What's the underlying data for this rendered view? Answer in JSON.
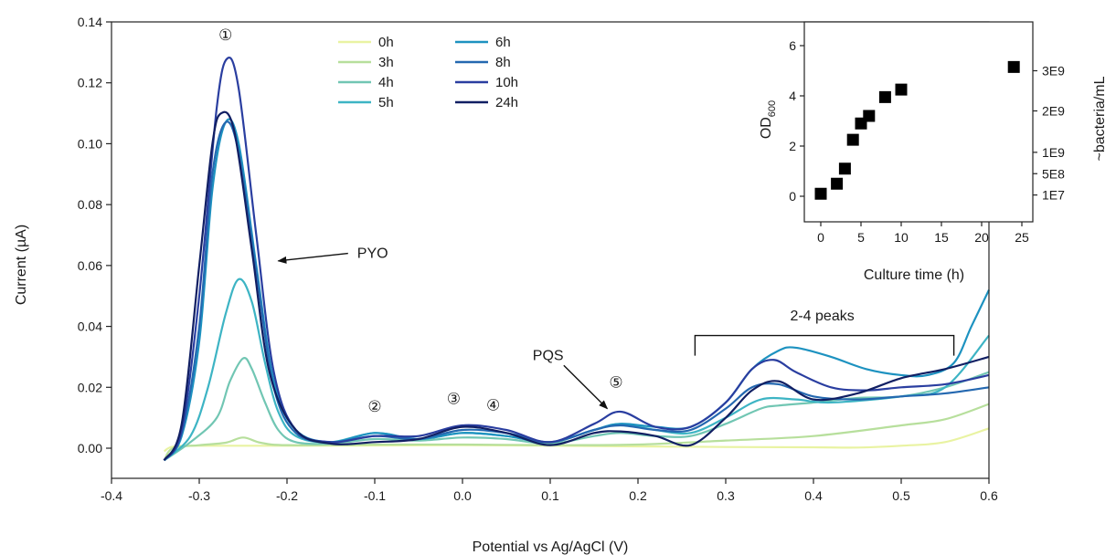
{
  "chart_data": [
    {
      "type": "line",
      "title": "",
      "xlabel": "Potential vs Ag/AgCl (V)",
      "ylabel": "Current (µA)",
      "xlim": [
        -0.4,
        0.6
      ],
      "ylim": [
        0,
        0.14
      ],
      "xticks": [
        "-0.4",
        "-0.3",
        "-0.2",
        "-0.1",
        "0.0",
        "0.1",
        "0.2",
        "0.3",
        "0.4",
        "0.5",
        "0.6"
      ],
      "yticks": [
        "0.00",
        "0.02",
        "0.04",
        "0.06",
        "0.08",
        "0.10",
        "0.12",
        "0.14"
      ],
      "legend_position": "top-center",
      "colors": {
        "0h": "#e9f3a2",
        "3h": "#b7df9c",
        "4h": "#71c6b3",
        "5h": "#3db4c4",
        "6h": "#1d92c0",
        "8h": "#2468b0",
        "10h": "#2a3ea0",
        "24h": "#111f63"
      },
      "series": [
        {
          "name": "0h",
          "points": [
            [
              -0.34,
              -0.001
            ],
            [
              -0.33,
              0.0005
            ],
            [
              -0.3,
              0.0008
            ],
            [
              -0.2,
              0.0008
            ],
            [
              -0.1,
              0.0009
            ],
            [
              0.0,
              0.001
            ],
            [
              0.1,
              0.0008
            ],
            [
              0.2,
              0.0006
            ],
            [
              0.3,
              0.0004
            ],
            [
              0.4,
              0.0003
            ],
            [
              0.45,
              0.0002
            ],
            [
              0.5,
              0.0008
            ],
            [
              0.55,
              0.002
            ],
            [
              0.6,
              0.0065
            ]
          ]
        },
        {
          "name": "3h",
          "points": [
            [
              -0.34,
              -0.004
            ],
            [
              -0.33,
              0.0
            ],
            [
              -0.3,
              0.001
            ],
            [
              -0.27,
              0.0018
            ],
            [
              -0.25,
              0.0035
            ],
            [
              -0.23,
              0.0018
            ],
            [
              -0.2,
              0.001
            ],
            [
              -0.1,
              0.0012
            ],
            [
              0.0,
              0.0012
            ],
            [
              0.1,
              0.001
            ],
            [
              0.2,
              0.0012
            ],
            [
              0.3,
              0.0025
            ],
            [
              0.4,
              0.004
            ],
            [
              0.5,
              0.0075
            ],
            [
              0.55,
              0.0095
            ],
            [
              0.6,
              0.0145
            ]
          ]
        },
        {
          "name": "4h",
          "points": [
            [
              -0.34,
              -0.004
            ],
            [
              -0.31,
              0.002
            ],
            [
              -0.28,
              0.01
            ],
            [
              -0.265,
              0.022
            ],
            [
              -0.25,
              0.0295
            ],
            [
              -0.24,
              0.026
            ],
            [
              -0.225,
              0.015
            ],
            [
              -0.21,
              0.006
            ],
            [
              -0.19,
              0.002
            ],
            [
              -0.15,
              0.0015
            ],
            [
              -0.1,
              0.003
            ],
            [
              -0.05,
              0.0025
            ],
            [
              0.0,
              0.0035
            ],
            [
              0.05,
              0.003
            ],
            [
              0.1,
              0.0015
            ],
            [
              0.15,
              0.004
            ],
            [
              0.18,
              0.005
            ],
            [
              0.22,
              0.004
            ],
            [
              0.26,
              0.004
            ],
            [
              0.3,
              0.008
            ],
            [
              0.34,
              0.013
            ],
            [
              0.36,
              0.014
            ],
            [
              0.4,
              0.015
            ],
            [
              0.45,
              0.0165
            ],
            [
              0.5,
              0.017
            ],
            [
              0.55,
              0.02
            ],
            [
              0.6,
              0.025
            ]
          ]
        },
        {
          "name": "5h",
          "points": [
            [
              -0.34,
              -0.004
            ],
            [
              -0.31,
              0.004
            ],
            [
              -0.29,
              0.02
            ],
            [
              -0.27,
              0.044
            ],
            [
              -0.255,
              0.0555
            ],
            [
              -0.24,
              0.048
            ],
            [
              -0.225,
              0.028
            ],
            [
              -0.21,
              0.012
            ],
            [
              -0.19,
              0.004
            ],
            [
              -0.15,
              0.002
            ],
            [
              -0.1,
              0.005
            ],
            [
              -0.05,
              0.003
            ],
            [
              0.0,
              0.005
            ],
            [
              0.05,
              0.004
            ],
            [
              0.1,
              0.002
            ],
            [
              0.15,
              0.006
            ],
            [
              0.18,
              0.008
            ],
            [
              0.22,
              0.006
            ],
            [
              0.26,
              0.005
            ],
            [
              0.3,
              0.01
            ],
            [
              0.34,
              0.016
            ],
            [
              0.38,
              0.016
            ],
            [
              0.42,
              0.015
            ],
            [
              0.5,
              0.017
            ],
            [
              0.55,
              0.02
            ],
            [
              0.6,
              0.037
            ]
          ]
        },
        {
          "name": "6h",
          "points": [
            [
              -0.34,
              -0.004
            ],
            [
              -0.32,
              0.004
            ],
            [
              -0.3,
              0.035
            ],
            [
              -0.285,
              0.085
            ],
            [
              -0.27,
              0.107
            ],
            [
              -0.255,
              0.1
            ],
            [
              -0.235,
              0.06
            ],
            [
              -0.215,
              0.022
            ],
            [
              -0.19,
              0.006
            ],
            [
              -0.15,
              0.002
            ],
            [
              -0.1,
              0.005
            ],
            [
              -0.05,
              0.003
            ],
            [
              0.0,
              0.005
            ],
            [
              0.05,
              0.004
            ],
            [
              0.1,
              0.002
            ],
            [
              0.15,
              0.006
            ],
            [
              0.18,
              0.008
            ],
            [
              0.22,
              0.007
            ],
            [
              0.26,
              0.007
            ],
            [
              0.3,
              0.015
            ],
            [
              0.33,
              0.026
            ],
            [
              0.36,
              0.032
            ],
            [
              0.38,
              0.033
            ],
            [
              0.42,
              0.03
            ],
            [
              0.46,
              0.026
            ],
            [
              0.5,
              0.024
            ],
            [
              0.53,
              0.024
            ],
            [
              0.56,
              0.028
            ],
            [
              0.58,
              0.04
            ],
            [
              0.6,
              0.052
            ]
          ]
        },
        {
          "name": "8h",
          "points": [
            [
              -0.34,
              -0.004
            ],
            [
              -0.32,
              0.005
            ],
            [
              -0.3,
              0.04
            ],
            [
              -0.285,
              0.09
            ],
            [
              -0.27,
              0.107
            ],
            [
              -0.255,
              0.097
            ],
            [
              -0.235,
              0.058
            ],
            [
              -0.215,
              0.02
            ],
            [
              -0.19,
              0.005
            ],
            [
              -0.15,
              0.002
            ],
            [
              -0.1,
              0.004
            ],
            [
              -0.05,
              0.003
            ],
            [
              0.0,
              0.006
            ],
            [
              0.05,
              0.005
            ],
            [
              0.1,
              0.002
            ],
            [
              0.15,
              0.006
            ],
            [
              0.18,
              0.0075
            ],
            [
              0.22,
              0.006
            ],
            [
              0.26,
              0.006
            ],
            [
              0.3,
              0.013
            ],
            [
              0.33,
              0.02
            ],
            [
              0.36,
              0.021
            ],
            [
              0.4,
              0.017
            ],
            [
              0.45,
              0.016
            ],
            [
              0.5,
              0.017
            ],
            [
              0.55,
              0.018
            ],
            [
              0.6,
              0.02
            ]
          ]
        },
        {
          "name": "10h",
          "points": [
            [
              -0.34,
              -0.004
            ],
            [
              -0.32,
              0.006
            ],
            [
              -0.3,
              0.05
            ],
            [
              -0.28,
              0.112
            ],
            [
              -0.268,
              0.128
            ],
            [
              -0.255,
              0.118
            ],
            [
              -0.235,
              0.07
            ],
            [
              -0.215,
              0.025
            ],
            [
              -0.19,
              0.006
            ],
            [
              -0.15,
              0.002
            ],
            [
              -0.1,
              0.004
            ],
            [
              -0.05,
              0.004
            ],
            [
              0.0,
              0.0075
            ],
            [
              0.05,
              0.006
            ],
            [
              0.1,
              0.002
            ],
            [
              0.15,
              0.008
            ],
            [
              0.18,
              0.012
            ],
            [
              0.22,
              0.007
            ],
            [
              0.26,
              0.007
            ],
            [
              0.3,
              0.015
            ],
            [
              0.33,
              0.026
            ],
            [
              0.355,
              0.029
            ],
            [
              0.38,
              0.025
            ],
            [
              0.42,
              0.02
            ],
            [
              0.46,
              0.019
            ],
            [
              0.5,
              0.02
            ],
            [
              0.55,
              0.021
            ],
            [
              0.6,
              0.024
            ]
          ]
        },
        {
          "name": "24h",
          "points": [
            [
              -0.34,
              -0.004
            ],
            [
              -0.32,
              0.008
            ],
            [
              -0.3,
              0.06
            ],
            [
              -0.285,
              0.1
            ],
            [
              -0.275,
              0.11
            ],
            [
              -0.26,
              0.104
            ],
            [
              -0.24,
              0.065
            ],
            [
              -0.22,
              0.025
            ],
            [
              -0.19,
              0.006
            ],
            [
              -0.15,
              0.0015
            ],
            [
              -0.1,
              0.002
            ],
            [
              -0.05,
              0.003
            ],
            [
              0.0,
              0.007
            ],
            [
              0.05,
              0.005
            ],
            [
              0.1,
              0.001
            ],
            [
              0.15,
              0.005
            ],
            [
              0.18,
              0.0055
            ],
            [
              0.22,
              0.004
            ],
            [
              0.26,
              0.001
            ],
            [
              0.3,
              0.01
            ],
            [
              0.33,
              0.019
            ],
            [
              0.36,
              0.022
            ],
            [
              0.4,
              0.016
            ],
            [
              0.45,
              0.018
            ],
            [
              0.5,
              0.023
            ],
            [
              0.55,
              0.026
            ],
            [
              0.6,
              0.03
            ]
          ]
        }
      ],
      "annotations": [
        {
          "text": "PYO",
          "x": -0.12,
          "y": 0.0625,
          "arrow_to": [
            -0.21,
            0.0615
          ]
        },
        {
          "text": "PQS",
          "x": 0.08,
          "y": 0.029,
          "arrow_to": [
            0.165,
            0.013
          ]
        },
        {
          "text": "2-4 peaks",
          "x": 0.41,
          "y": 0.042
        }
      ],
      "bracket": {
        "x_start": 0.265,
        "x_end": 0.56,
        "y": 0.037
      },
      "peak_markers": [
        {
          "text": "①",
          "x": -0.27,
          "y": 0.134
        },
        {
          "text": "②",
          "x": -0.1,
          "y": 0.012
        },
        {
          "text": "③",
          "x": -0.01,
          "y": 0.0145
        },
        {
          "text": "④",
          "x": 0.035,
          "y": 0.0125
        },
        {
          "text": "⑤",
          "x": 0.175,
          "y": 0.02
        }
      ]
    },
    {
      "type": "scatter",
      "title": "",
      "xlabel": "Culture time (h)",
      "ylabel": "OD600",
      "ylabel_main": "OD",
      "ylabel_sub": "600",
      "y2label": "~bacteria/mL",
      "xlim": [
        -2,
        26
      ],
      "ylim": [
        -1,
        6.8
      ],
      "xticks": [
        "0",
        "5",
        "10",
        "15",
        "20",
        "25"
      ],
      "yticks": [
        "0",
        "2",
        "4",
        "6"
      ],
      "y2ticks": [
        {
          "label": "3E9",
          "y": 5.0
        },
        {
          "label": "2E9",
          "y": 3.4
        },
        {
          "label": "1E9",
          "y": 1.75
        },
        {
          "label": "5E8",
          "y": 0.9
        },
        {
          "label": "1E7",
          "y": 0.05
        }
      ],
      "marker_color": "#000000",
      "points": [
        [
          0,
          0.1
        ],
        [
          2,
          0.5
        ],
        [
          3,
          1.1
        ],
        [
          4,
          2.25
        ],
        [
          5,
          2.9
        ],
        [
          6,
          3.2
        ],
        [
          8,
          3.95
        ],
        [
          10,
          4.25
        ],
        [
          24,
          5.15
        ]
      ]
    }
  ]
}
